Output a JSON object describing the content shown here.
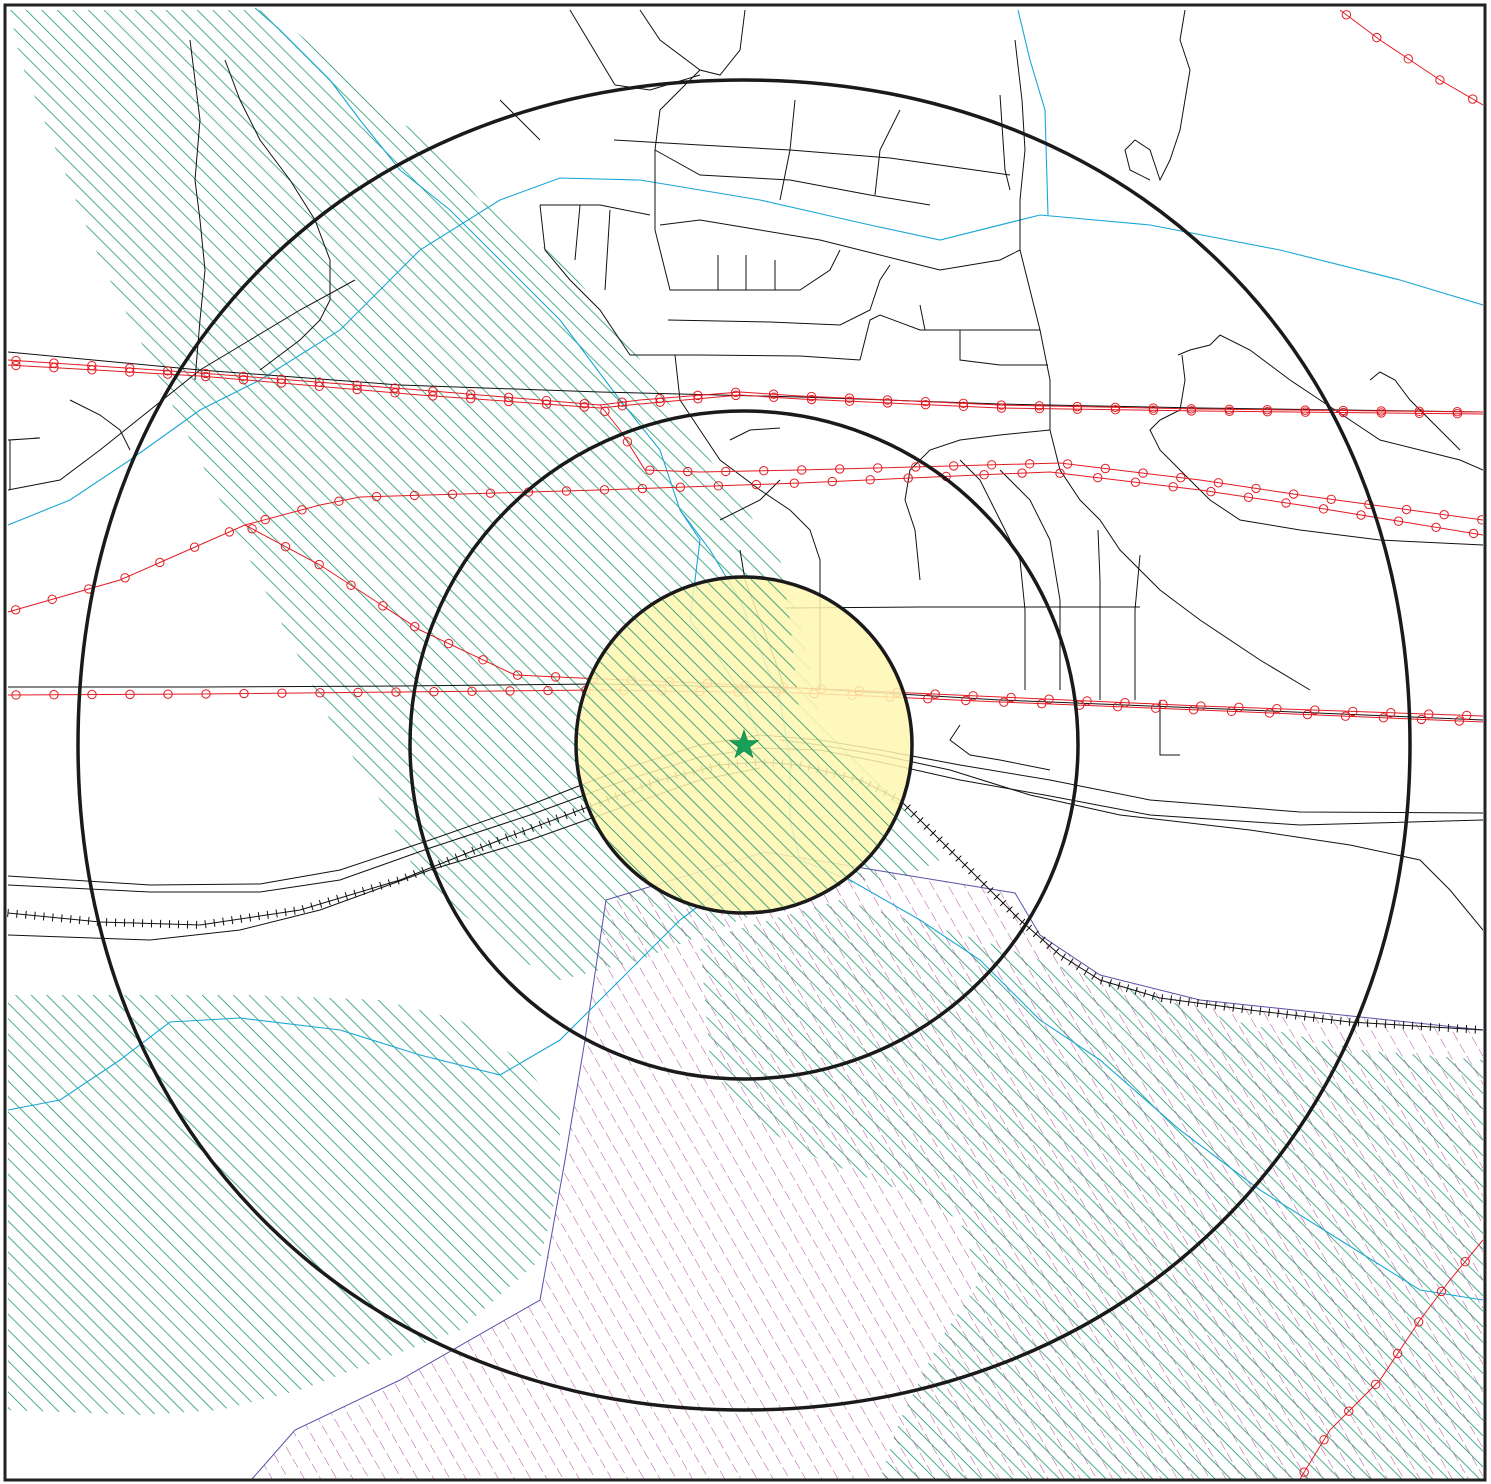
{
  "map": {
    "colors": {
      "border": "#222222",
      "road": "#111111",
      "water": "#1aa6d6",
      "transmission_line": "#e31b23",
      "forest_hatch": "#1f9a6e",
      "wetland_hatch": "#b24aa8",
      "boundary": "#5b4fa8",
      "buffer_ring": "#1a1a1a",
      "inner_buffer_fill": "#fff7b0",
      "site_marker": "#17a05a"
    },
    "icons": {
      "site_marker": "star-icon",
      "railway": "railway-track-symbol",
      "transmission_line": "powerline-circle-symbol"
    },
    "buffers": {
      "ring_count": 3,
      "inner_filled": true
    }
  }
}
